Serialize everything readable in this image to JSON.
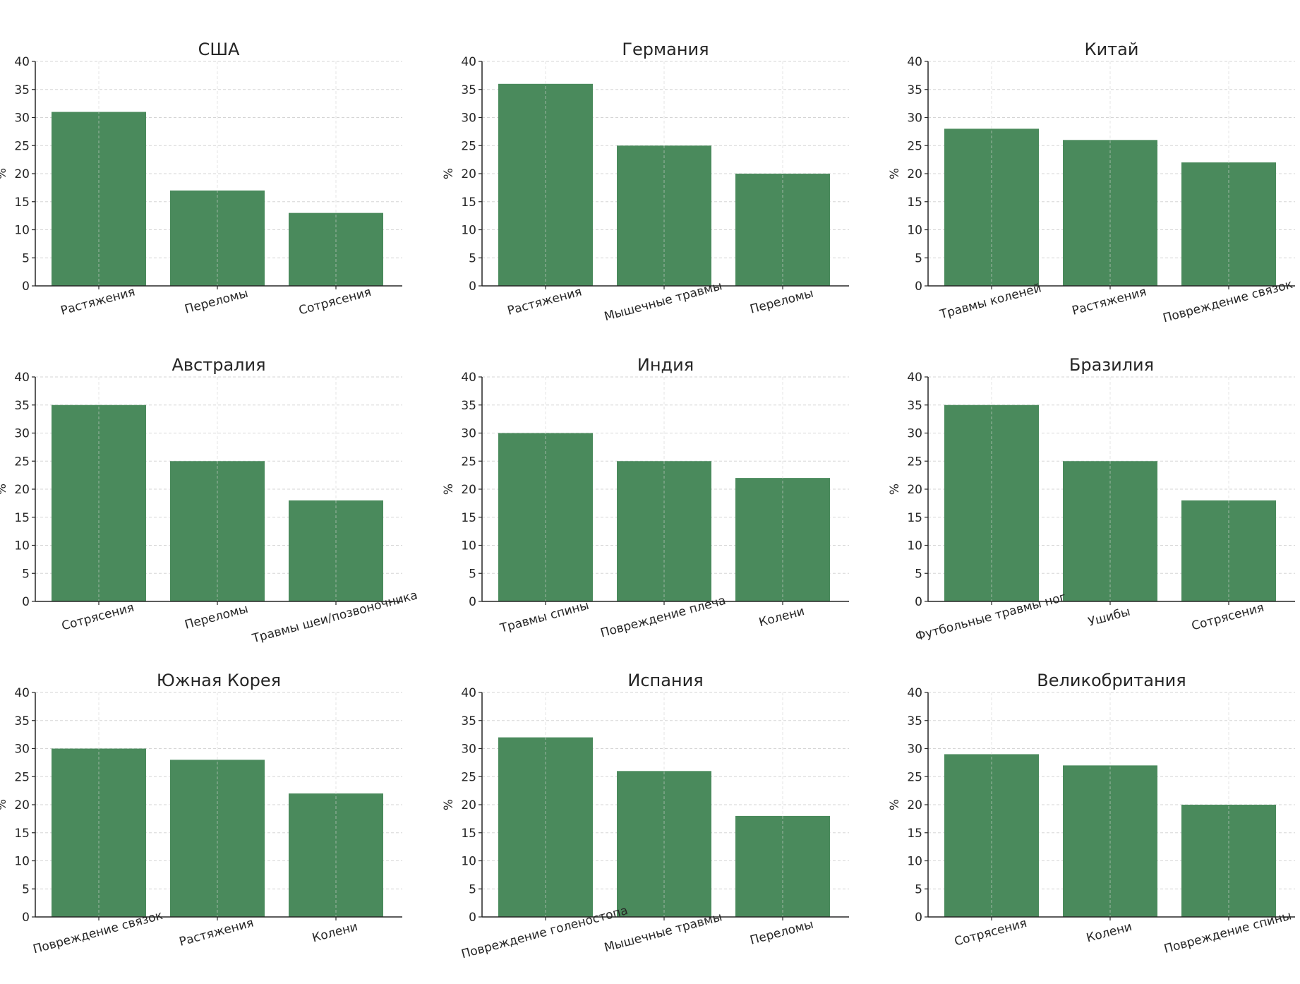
{
  "colors": {
    "bar": "#4a8a5c",
    "grid": "#d5d5d5",
    "axis": "#262626"
  },
  "chart_data": [
    {
      "type": "bar",
      "title": "США",
      "ylabel": "%",
      "ylim": [
        0,
        40
      ],
      "yticks": [
        0,
        5,
        10,
        15,
        20,
        25,
        30,
        35,
        40
      ],
      "grid": true,
      "categories": [
        "Растяжения",
        "Переломы",
        "Сотрясения"
      ],
      "values": [
        31,
        17,
        13
      ]
    },
    {
      "type": "bar",
      "title": "Германия",
      "ylabel": "%",
      "ylim": [
        0,
        40
      ],
      "yticks": [
        0,
        5,
        10,
        15,
        20,
        25,
        30,
        35,
        40
      ],
      "grid": true,
      "categories": [
        "Растяжения",
        "Мышечные травмы",
        "Переломы"
      ],
      "values": [
        36,
        25,
        20
      ]
    },
    {
      "type": "bar",
      "title": "Китай",
      "ylabel": "%",
      "ylim": [
        0,
        40
      ],
      "yticks": [
        0,
        5,
        10,
        15,
        20,
        25,
        30,
        35,
        40
      ],
      "grid": true,
      "categories": [
        "Травмы коленей",
        "Растяжения",
        "Повреждение связок"
      ],
      "values": [
        28,
        26,
        22
      ]
    },
    {
      "type": "bar",
      "title": "Австралия",
      "ylabel": "%",
      "ylim": [
        0,
        40
      ],
      "yticks": [
        0,
        5,
        10,
        15,
        20,
        25,
        30,
        35,
        40
      ],
      "grid": true,
      "categories": [
        "Сотрясения",
        "Переломы",
        "Травмы шеи/позвоночника"
      ],
      "values": [
        35,
        25,
        18
      ]
    },
    {
      "type": "bar",
      "title": "Индия",
      "ylabel": "%",
      "ylim": [
        0,
        40
      ],
      "yticks": [
        0,
        5,
        10,
        15,
        20,
        25,
        30,
        35,
        40
      ],
      "grid": true,
      "categories": [
        "Травмы спины",
        "Повреждение плеча",
        "Колени"
      ],
      "values": [
        30,
        25,
        22
      ]
    },
    {
      "type": "bar",
      "title": "Бразилия",
      "ylabel": "%",
      "ylim": [
        0,
        40
      ],
      "yticks": [
        0,
        5,
        10,
        15,
        20,
        25,
        30,
        35,
        40
      ],
      "grid": true,
      "categories": [
        "Футбольные травмы ног",
        "Ушибы",
        "Сотрясения"
      ],
      "values": [
        35,
        25,
        18
      ]
    },
    {
      "type": "bar",
      "title": "Южная Корея",
      "ylabel": "%",
      "ylim": [
        0,
        40
      ],
      "yticks": [
        0,
        5,
        10,
        15,
        20,
        25,
        30,
        35,
        40
      ],
      "grid": true,
      "categories": [
        "Повреждение связок",
        "Растяжения",
        "Колени"
      ],
      "values": [
        30,
        28,
        22
      ]
    },
    {
      "type": "bar",
      "title": "Испания",
      "ylabel": "%",
      "ylim": [
        0,
        40
      ],
      "yticks": [
        0,
        5,
        10,
        15,
        20,
        25,
        30,
        35,
        40
      ],
      "grid": true,
      "categories": [
        "Повреждение голеностопа",
        "Мышечные травмы",
        "Переломы"
      ],
      "values": [
        32,
        26,
        18
      ]
    },
    {
      "type": "bar",
      "title": "Великобритания",
      "ylabel": "%",
      "ylim": [
        0,
        40
      ],
      "yticks": [
        0,
        5,
        10,
        15,
        20,
        25,
        30,
        35,
        40
      ],
      "grid": true,
      "categories": [
        "Сотрясения",
        "Колени",
        "Повреждение спины"
      ],
      "values": [
        29,
        27,
        20
      ]
    }
  ]
}
